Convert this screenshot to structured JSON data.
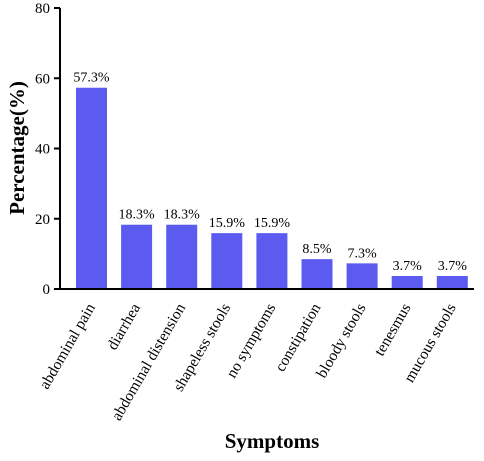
{
  "chart_data": {
    "type": "bar",
    "xlabel": "Symptoms",
    "ylabel": "Percentage(%)",
    "ylim": [
      0,
      80
    ],
    "yticks": [
      0,
      20,
      40,
      60,
      80
    ],
    "grid": false,
    "bar_color": "#5b5bf0",
    "categories": [
      "abdominal pain",
      "diarrhea",
      "abdominal distension",
      "shapeless stools",
      "no symptoms",
      "constipation",
      "bloody stools",
      "tenesmus",
      "mucous stools"
    ],
    "values": [
      57.3,
      18.3,
      18.3,
      15.9,
      15.9,
      8.5,
      7.3,
      3.7,
      3.7
    ],
    "data_labels": [
      "57.3%",
      "18.3%",
      "18.3%",
      "15.9%",
      "15.9%",
      "8.5%",
      "7.3%",
      "3.7%",
      "3.7%"
    ]
  }
}
